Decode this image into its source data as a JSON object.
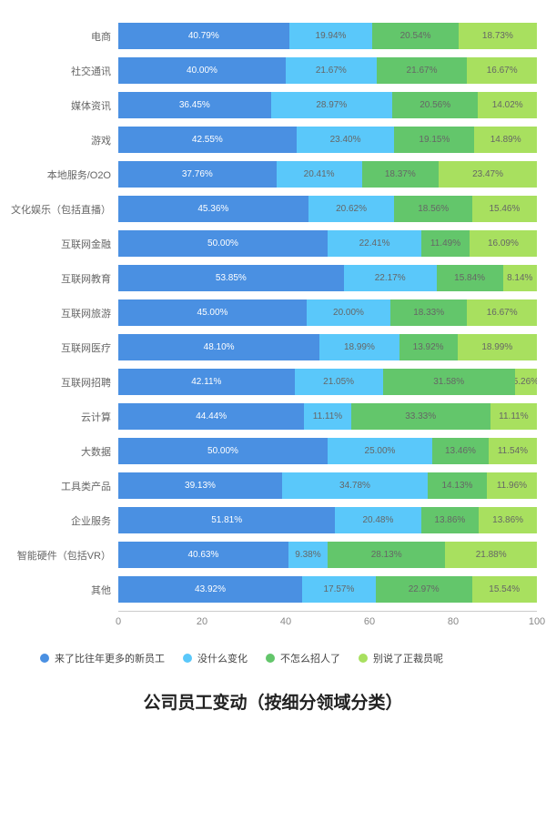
{
  "chart": {
    "type": "stacked-horizontal-bar",
    "title": "公司员工变动（按细分领域分类）",
    "xlim": [
      0,
      100
    ],
    "xtick_step": 20,
    "xticks": [
      "0",
      "20",
      "40",
      "60",
      "80",
      "100"
    ],
    "grid_color": "#cccccc",
    "background_color": "#ffffff",
    "label_font_size": 11,
    "value_font_size": 10,
    "title_font_size": 19,
    "series": [
      {
        "name": "来了比往年更多的新员工",
        "color": "#4a90e2",
        "text_color": "#ffffff"
      },
      {
        "name": "没什么变化",
        "color": "#5ac8fa",
        "text_color": "#666666"
      },
      {
        "name": "不怎么招人了",
        "color": "#63c66b",
        "text_color": "#666666"
      },
      {
        "name": "别说了正裁员呢",
        "color": "#a8e05f",
        "text_color": "#666666"
      }
    ],
    "categories": [
      {
        "label": "电商",
        "values": [
          40.79,
          19.94,
          20.54,
          18.73
        ]
      },
      {
        "label": "社交通讯",
        "values": [
          40.0,
          21.67,
          21.67,
          16.67
        ]
      },
      {
        "label": "媒体资讯",
        "values": [
          36.45,
          28.97,
          20.56,
          14.02
        ]
      },
      {
        "label": "游戏",
        "values": [
          42.55,
          23.4,
          19.15,
          14.89
        ]
      },
      {
        "label": "本地服务/O2O",
        "values": [
          37.76,
          20.41,
          18.37,
          23.47
        ]
      },
      {
        "label": "文化娱乐（包括直播）",
        "values": [
          45.36,
          20.62,
          18.56,
          15.46
        ]
      },
      {
        "label": "互联网金融",
        "values": [
          50.0,
          22.41,
          11.49,
          16.09
        ]
      },
      {
        "label": "互联网教育",
        "values": [
          53.85,
          22.17,
          15.84,
          8.14
        ]
      },
      {
        "label": "互联网旅游",
        "values": [
          45.0,
          20.0,
          18.33,
          16.67
        ]
      },
      {
        "label": "互联网医疗",
        "values": [
          48.1,
          18.99,
          13.92,
          18.99
        ]
      },
      {
        "label": "互联网招聘",
        "values": [
          42.11,
          21.05,
          31.58,
          5.26
        ]
      },
      {
        "label": "云计算",
        "values": [
          44.44,
          11.11,
          33.33,
          11.11
        ]
      },
      {
        "label": "大数据",
        "values": [
          50.0,
          25.0,
          13.46,
          11.54
        ]
      },
      {
        "label": "工具类产品",
        "values": [
          39.13,
          34.78,
          14.13,
          11.96
        ]
      },
      {
        "label": "企业服务",
        "values": [
          51.81,
          20.48,
          13.86,
          13.86
        ]
      },
      {
        "label": "智能硬件（包括VR）",
        "values": [
          40.63,
          9.38,
          28.13,
          21.88
        ]
      },
      {
        "label": "其他",
        "values": [
          43.92,
          17.57,
          22.97,
          15.54
        ]
      }
    ]
  }
}
